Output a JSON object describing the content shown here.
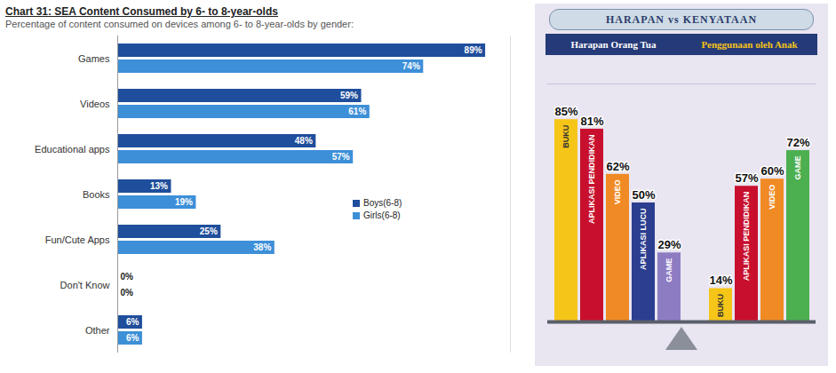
{
  "chart_data": [
    {
      "type": "bar",
      "orientation": "horizontal",
      "title": "Chart 31: SEA Content Consumed by 6- to 8-year-olds",
      "subtitle": "Percentage of content consumed on devices among 6- to 8-year-olds by gender:",
      "categories": [
        "Games",
        "Videos",
        "Educational apps",
        "Books",
        "Fun/Cute Apps",
        "Don't Know",
        "Other"
      ],
      "series": [
        {
          "name": "Boys(6-8)",
          "color": "#1f4e9c",
          "values": [
            89,
            59,
            48,
            13,
            25,
            0,
            6
          ],
          "value_labels": [
            "89%",
            "59%",
            "48%",
            "13%",
            "25%",
            "0%",
            "6%"
          ]
        },
        {
          "name": "Girls(6-8)",
          "color": "#3d8fd8",
          "values": [
            74,
            61,
            57,
            19,
            38,
            0,
            6
          ],
          "value_labels": [
            "74%",
            "61%",
            "57%",
            "19%",
            "38%",
            "0%",
            "6%"
          ]
        }
      ],
      "xlim": [
        0,
        95
      ],
      "data_labels": true,
      "tick_labels": "y",
      "legend": "right"
    },
    {
      "type": "bar",
      "title": "HARAPAN vs KENYATAAN",
      "series": [
        {
          "name": "Harapan Orang Tua",
          "categories": [
            "BUKU",
            "APLIKASI PENDIDIKAN",
            "VIDEO",
            "APLIKASI LUCU",
            "GAME"
          ],
          "values": [
            85,
            81,
            62,
            50,
            29
          ],
          "value_labels": [
            "85%",
            "81%",
            "62%",
            "50%",
            "29%"
          ],
          "colors": [
            "#f5c518",
            "#c8102e",
            "#f08a24",
            "#2c3e8f",
            "#8e7cc3"
          ]
        },
        {
          "name": "Penggunaan oleh Anak",
          "categories": [
            "BUKU",
            "APLIKASI PENDIDIKAN",
            "VIDEO",
            "GAME"
          ],
          "values": [
            14,
            57,
            60,
            72
          ],
          "value_labels": [
            "14%",
            "57%",
            "60%",
            "72%"
          ],
          "colors": [
            "#f5c518",
            "#c8102e",
            "#f08a24",
            "#4caf50"
          ]
        }
      ],
      "ylim": [
        0,
        100
      ],
      "data_labels": true,
      "tick_labels": false
    }
  ]
}
